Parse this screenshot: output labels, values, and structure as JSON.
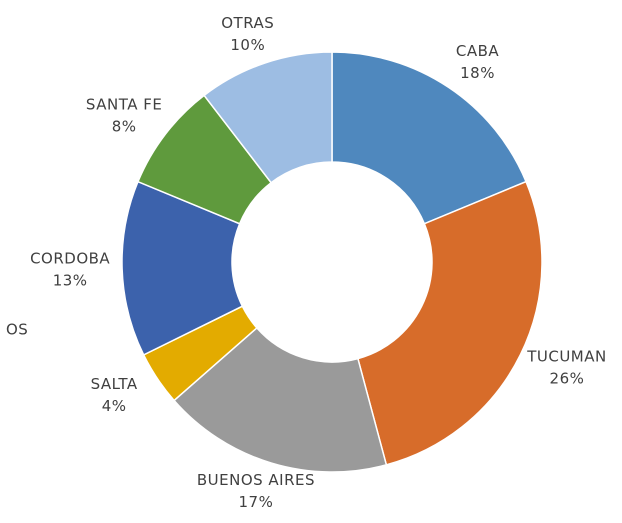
{
  "chart_data": {
    "type": "donut",
    "categories": [
      "CABA",
      "TUCUMAN",
      "BUENOS AIRES",
      "SALTA",
      "CORDOBA",
      "SANTA FE",
      "OTRAS"
    ],
    "values": [
      18,
      26,
      17,
      4,
      13,
      8,
      10
    ],
    "value_labels": [
      "18%",
      "26%",
      "17%",
      "4%",
      "13%",
      "8%",
      "10%"
    ],
    "colors": [
      "#4f88be",
      "#d76c2a",
      "#9a9a9a",
      "#e3ab00",
      "#3c62ac",
      "#5f9a3d",
      "#9dbde3"
    ],
    "annotations": [
      "OS"
    ]
  }
}
